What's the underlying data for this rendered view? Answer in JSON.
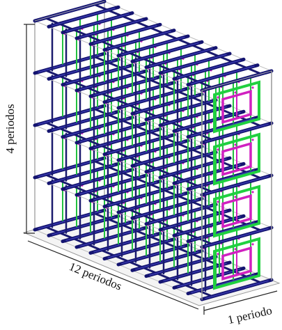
{
  "labels": {
    "vertical": "4 periodos",
    "length": "12 periodos",
    "depth": "1 periodo"
  }
}
